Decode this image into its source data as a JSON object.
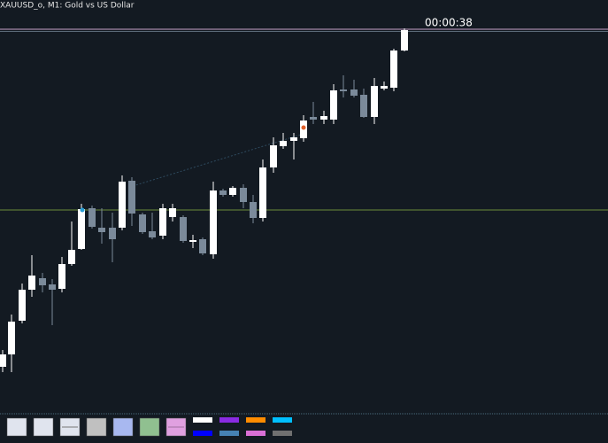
{
  "header": {
    "title": "XAUUSD_o, M1:  Gold vs US Dollar"
  },
  "timer": "00:00:38"
}
